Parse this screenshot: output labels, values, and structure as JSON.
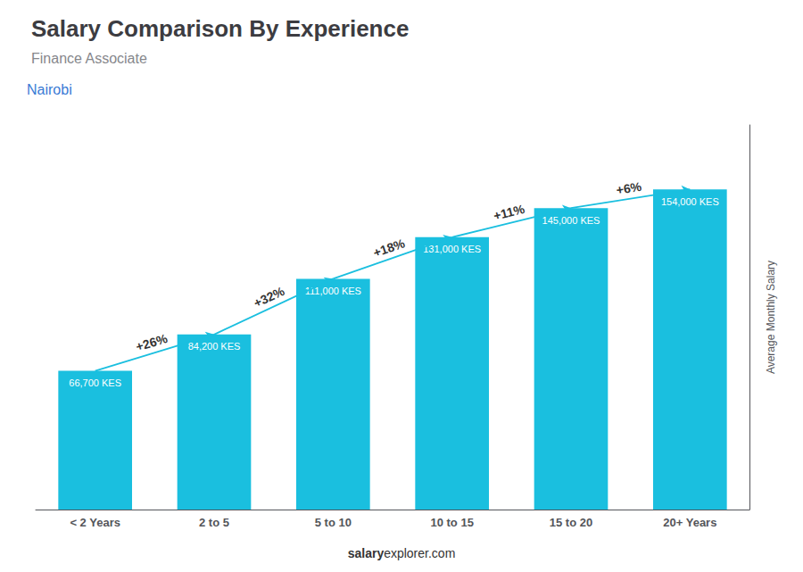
{
  "chart_data": {
    "type": "bar",
    "title": "Salary Comparison By Experience",
    "subtitle": "Finance Associate",
    "annotations": [
      "Nairobi",
      "salary",
      "explorer.com"
    ],
    "ylabel": "Average Monthly Salary",
    "categories": [
      "< 2 Years",
      "2 to 5",
      "5 to 10",
      "10 to 15",
      "15 to 20",
      "20+ Years"
    ],
    "values": [
      66700,
      84200,
      111000,
      131000,
      145000,
      154000
    ],
    "value_labels": [
      "66,700 KES",
      "84,200 KES",
      "111,000 KES",
      "131,000 KES",
      "145,000 KES",
      "154,000 KES"
    ],
    "data_labels": true,
    "change_labels": [
      "+26%",
      "+32%",
      "+18%",
      "+11%",
      "+6%"
    ],
    "color": "#1ABFDF",
    "ylim": [
      0,
      185000
    ],
    "yticks": [],
    "tick_labels": "x",
    "grid": false
  }
}
